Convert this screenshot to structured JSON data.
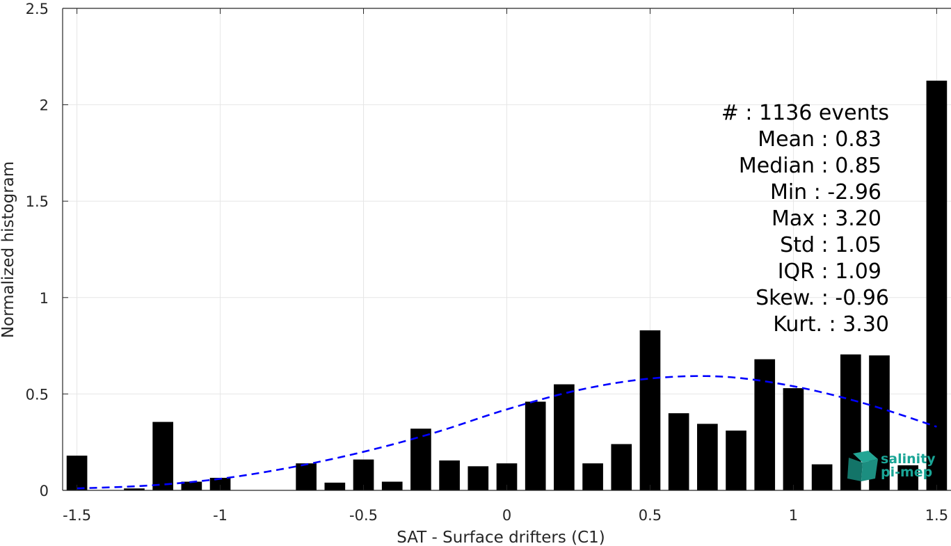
{
  "chart_data": {
    "type": "bar",
    "xlabel": "SAT - Surface drifters (C1)",
    "ylabel": "Normalized histogram",
    "xlim": [
      -1.55,
      1.55
    ],
    "ylim": [
      0,
      2.5
    ],
    "grid": true,
    "xticks": [
      "-1.5",
      "-1",
      "-0.5",
      "0",
      "0.5",
      "1",
      "1.5"
    ],
    "yticks": [
      "0",
      "0.5",
      "1",
      "1.5",
      "2",
      "2.5"
    ],
    "bar_width": 0.072,
    "bar_color": "#000000",
    "bins": [
      -1.5,
      -1.4,
      -1.3,
      -1.2,
      -1.1,
      -1.0,
      -0.9,
      -0.8,
      -0.7,
      -0.6,
      -0.5,
      -0.4,
      -0.3,
      -0.2,
      -0.1,
      0.0,
      0.1,
      0.2,
      0.3,
      0.4,
      0.5,
      0.6,
      0.7,
      0.8,
      0.9,
      1.0,
      1.1,
      1.2,
      1.3,
      1.4,
      1.5
    ],
    "values": [
      0.18,
      0.0,
      0.01,
      0.355,
      0.045,
      0.065,
      0.0,
      0.0,
      0.14,
      0.04,
      0.16,
      0.045,
      0.32,
      0.155,
      0.125,
      0.14,
      0.46,
      0.55,
      0.14,
      0.24,
      0.83,
      0.4,
      0.345,
      0.31,
      0.68,
      0.53,
      0.135,
      0.705,
      0.7,
      0.13,
      2.125
    ],
    "fit_curve": {
      "style": "dashed",
      "color": "#0000ff",
      "x": [
        -1.5,
        -1.25,
        -1.0,
        -0.75,
        -0.5,
        -0.25,
        0.0,
        0.25,
        0.5,
        0.75,
        1.0,
        1.25,
        1.5
      ],
      "y": [
        0.01,
        0.025,
        0.06,
        0.12,
        0.2,
        0.3,
        0.42,
        0.52,
        0.58,
        0.59,
        0.54,
        0.45,
        0.33
      ]
    }
  },
  "stats": {
    "lines": [
      "#  : 1136 events",
      "Mean : 0.83",
      "Median : 0.85",
      "Min : -2.96",
      "Max : 3.20",
      "Std : 1.05",
      "IQR : 1.09",
      "Skew. : -0.96",
      "Kurt. : 3.30"
    ]
  },
  "logo": {
    "line1": "salinity",
    "line2": "pi-mep"
  }
}
